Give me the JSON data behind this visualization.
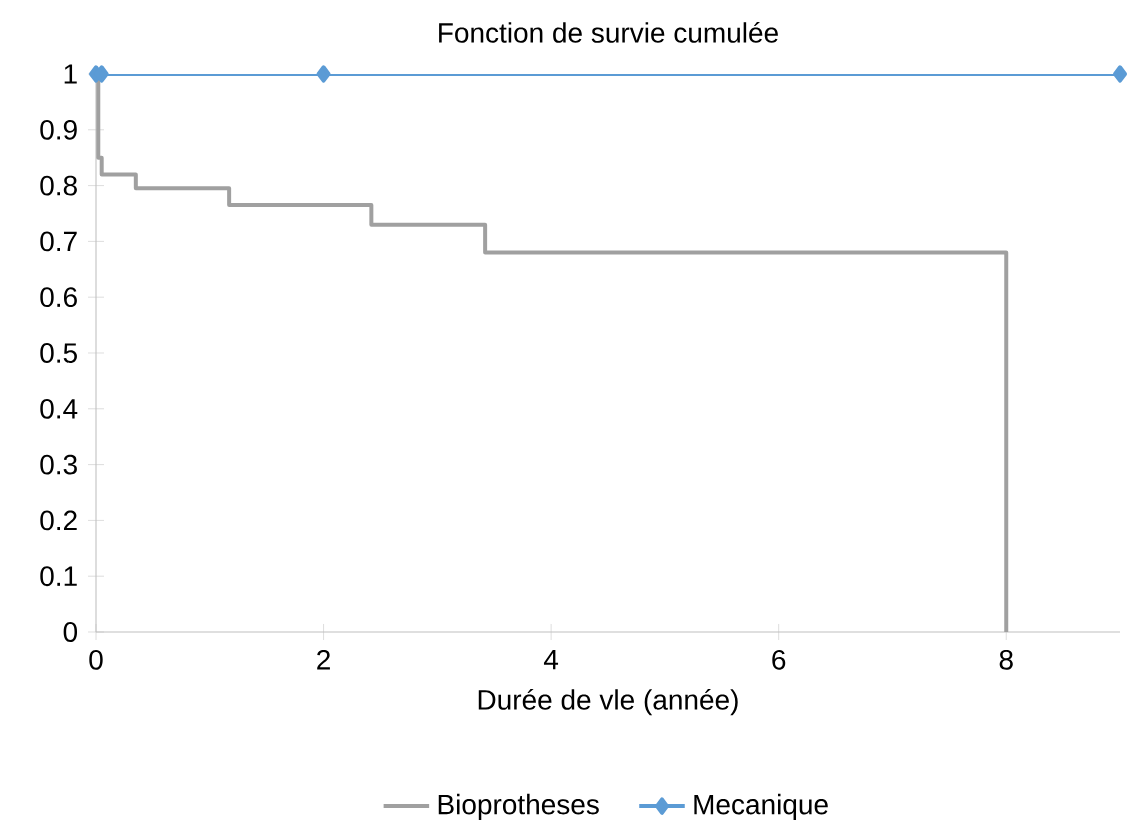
{
  "chart_data": {
    "type": "line",
    "title": "Fonction de survie cumulée",
    "xlabel": "Durée de vle (année)",
    "xlim": [
      0,
      9
    ],
    "xticks": [
      0,
      2,
      4,
      6,
      8
    ],
    "ylim": [
      0,
      1
    ],
    "yticks": [
      0,
      0.1,
      0.2,
      0.3,
      0.4,
      0.5,
      0.6,
      0.7,
      0.8,
      0.9,
      1
    ],
    "grid": false,
    "legend": "bottom",
    "series": [
      {
        "name": "Bioprotheses",
        "type": "step",
        "color": "#a0a0a0",
        "marker": "none",
        "x": [
          0,
          0.02,
          0.05,
          0.35,
          1.17,
          2.42,
          3.42,
          8,
          8
        ],
        "values": [
          1,
          0.85,
          0.82,
          0.795,
          0.765,
          0.73,
          0.68,
          0,
          0
        ]
      },
      {
        "name": "Mecanique",
        "color": "#5b9bd5",
        "marker": "diamond",
        "x": [
          0,
          0.05,
          2,
          9
        ],
        "values": [
          1,
          1,
          1,
          1
        ]
      }
    ]
  }
}
